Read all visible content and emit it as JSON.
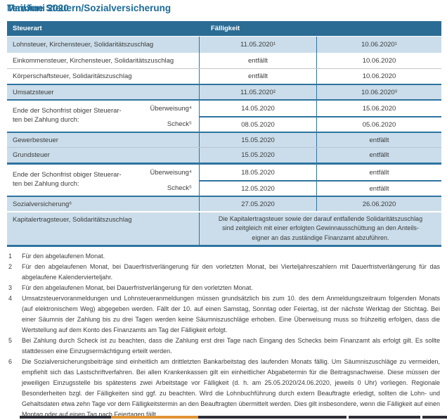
{
  "header": {
    "title": "Termine Steuern/Sozialversicherung",
    "period": "Mai/Juni 2020"
  },
  "table": {
    "col_headers": {
      "steuerart": "Steuerart",
      "faelligkeit": "Fälligkeit"
    },
    "rows": {
      "lohnsteuer": {
        "label": "Lohnsteuer, Kirchensteuer, Solidaritätszuschlag",
        "may": "11.05.2020¹",
        "june": "10.06.2020¹"
      },
      "einkommensteuer": {
        "label": "Einkommensteuer, Kirchensteuer, Solidaritätszuschlag",
        "may": "entfällt",
        "june": "10.06.2020"
      },
      "koerperschaftsteuer": {
        "label": "Körperschaftsteuer, Solidaritätszuschlag",
        "may": "entfällt",
        "june": "10.06.2020"
      },
      "umsatzsteuer": {
        "label": "Umsatzsteuer",
        "may": "11.05.2020²",
        "june": "10.06.2020³"
      },
      "schonfrist1": {
        "label_lines": [
          "Ende der Schonfrist obiger Steuerar-",
          "ten bei Zahlung durch:"
        ],
        "rows": [
          {
            "method": "Überweisung⁴",
            "may": "14.05.2020",
            "june": "15.06.2020"
          },
          {
            "method": "Scheck⁵",
            "may": "08.05.2020",
            "june": "05.06.2020"
          }
        ]
      },
      "gewerbesteuer": {
        "label": "Gewerbesteuer",
        "may": "15.05.2020",
        "june": "entfällt"
      },
      "grundsteuer": {
        "label": "Grundsteuer",
        "may": "15.05.2020",
        "june": "entfällt"
      },
      "schonfrist2": {
        "label_lines": [
          "Ende der Schonfrist obiger Steuerar-",
          "ten bei Zahlung durch:"
        ],
        "rows": [
          {
            "method": "Überweisung⁴",
            "may": "18.05.2020",
            "june": "entfällt"
          },
          {
            "method": "Scheck⁵",
            "may": "12.05.2020",
            "june": "entfällt"
          }
        ]
      },
      "sozialversicherung": {
        "label": "Sozialversicherung⁶",
        "may": "27.05.2020",
        "june": "26.06.2020"
      },
      "kapitalertragsteuer": {
        "label": "Kapitalertragsteuer, Solidaritätszuschlag",
        "note_lines": [
          "Die Kapitalertragsteuer sowie der darauf entfallende Solidaritätszuschlag",
          "sind zeitgleich mit einer erfolgten Gewinnausschüttung an den Anteils-",
          "eigner an das zuständige Finanzamt abzuführen."
        ]
      }
    }
  },
  "footnotes": [
    {
      "num": "1",
      "text": "Für den abgelaufenen Monat."
    },
    {
      "num": "2",
      "text": "Für den abgelaufenen Monat, bei Dauerfristverlängerung für den vorletzten Monat, bei Vierteljahreszahlern mit Dauerfristverlängerung für das abgelaufene Kalendervierteljahr."
    },
    {
      "num": "3",
      "text": "Für den abgelaufenen Monat, bei Dauerfristverlängerung für den vorletzten Monat."
    },
    {
      "num": "4",
      "text": "Umsatzsteuervoranmeldungen und Lohnsteueranmeldungen müssen grundsätzlich bis zum 10. des dem Anmeldungszeitraum folgenden Monats (auf elektronischem Weg) abgegeben werden. Fällt der 10. auf einen Samstag, Sonntag oder Feiertag, ist der nächste Werktag der Stichtag. Bei einer Säumnis der Zahlung bis zu drei Tagen werden keine Säumniszuschläge erhoben. Eine Überweisung muss so frühzeitig erfolgen, dass die Wertstellung auf dem Konto des Finanzamts am Tag der Fälligkeit erfolgt."
    },
    {
      "num": "5",
      "text": "Bei Zahlung durch Scheck ist zu beachten, dass die Zahlung erst drei Tage nach Eingang des Schecks beim Finanzamt als erfolgt gilt. Es sollte stattdessen eine Einzugsermächtigung erteilt werden."
    },
    {
      "num": "6",
      "text": "Die Sozialversicherungsbeiträge sind einheitlich am drittletzten Bankarbeitstag des laufenden Monats fällig. Um Säumniszuschläge zu vermeiden, empfiehlt sich das Lastschriftverfahren. Bei allen Krankenkassen gilt ein einheitlicher Abgabetermin für die Beitragsnachweise. Diese müssen der jeweiligen Einzugsstelle bis spätestens zwei Arbeitstage vor Fälligkeit (d. h. am 25.05.2020/24.06.2020, jeweils 0 Uhr) vorliegen. Regionale Besonderheiten bzgl. der Fälligkeiten sind ggf. zu beachten. Wird die Lohnbuchführung durch extern Beauftragte erledigt, sollten die Lohn- und Gehaltsdaten etwa zehn Tage vor dem Fälligkeitstermin an den Beauftragten übermittelt werden. Dies gilt insbesondere, wenn die Fälligkeit auf einen Montag oder auf einen Tag nach Feiertagen fällt."
    }
  ],
  "colors": {
    "header_bg": "#2b6c94",
    "row_highlight": "#cbddea",
    "title_blue": "#1b6b99",
    "line_blue": "#2e74a0",
    "accent_orange": "#e09433"
  }
}
